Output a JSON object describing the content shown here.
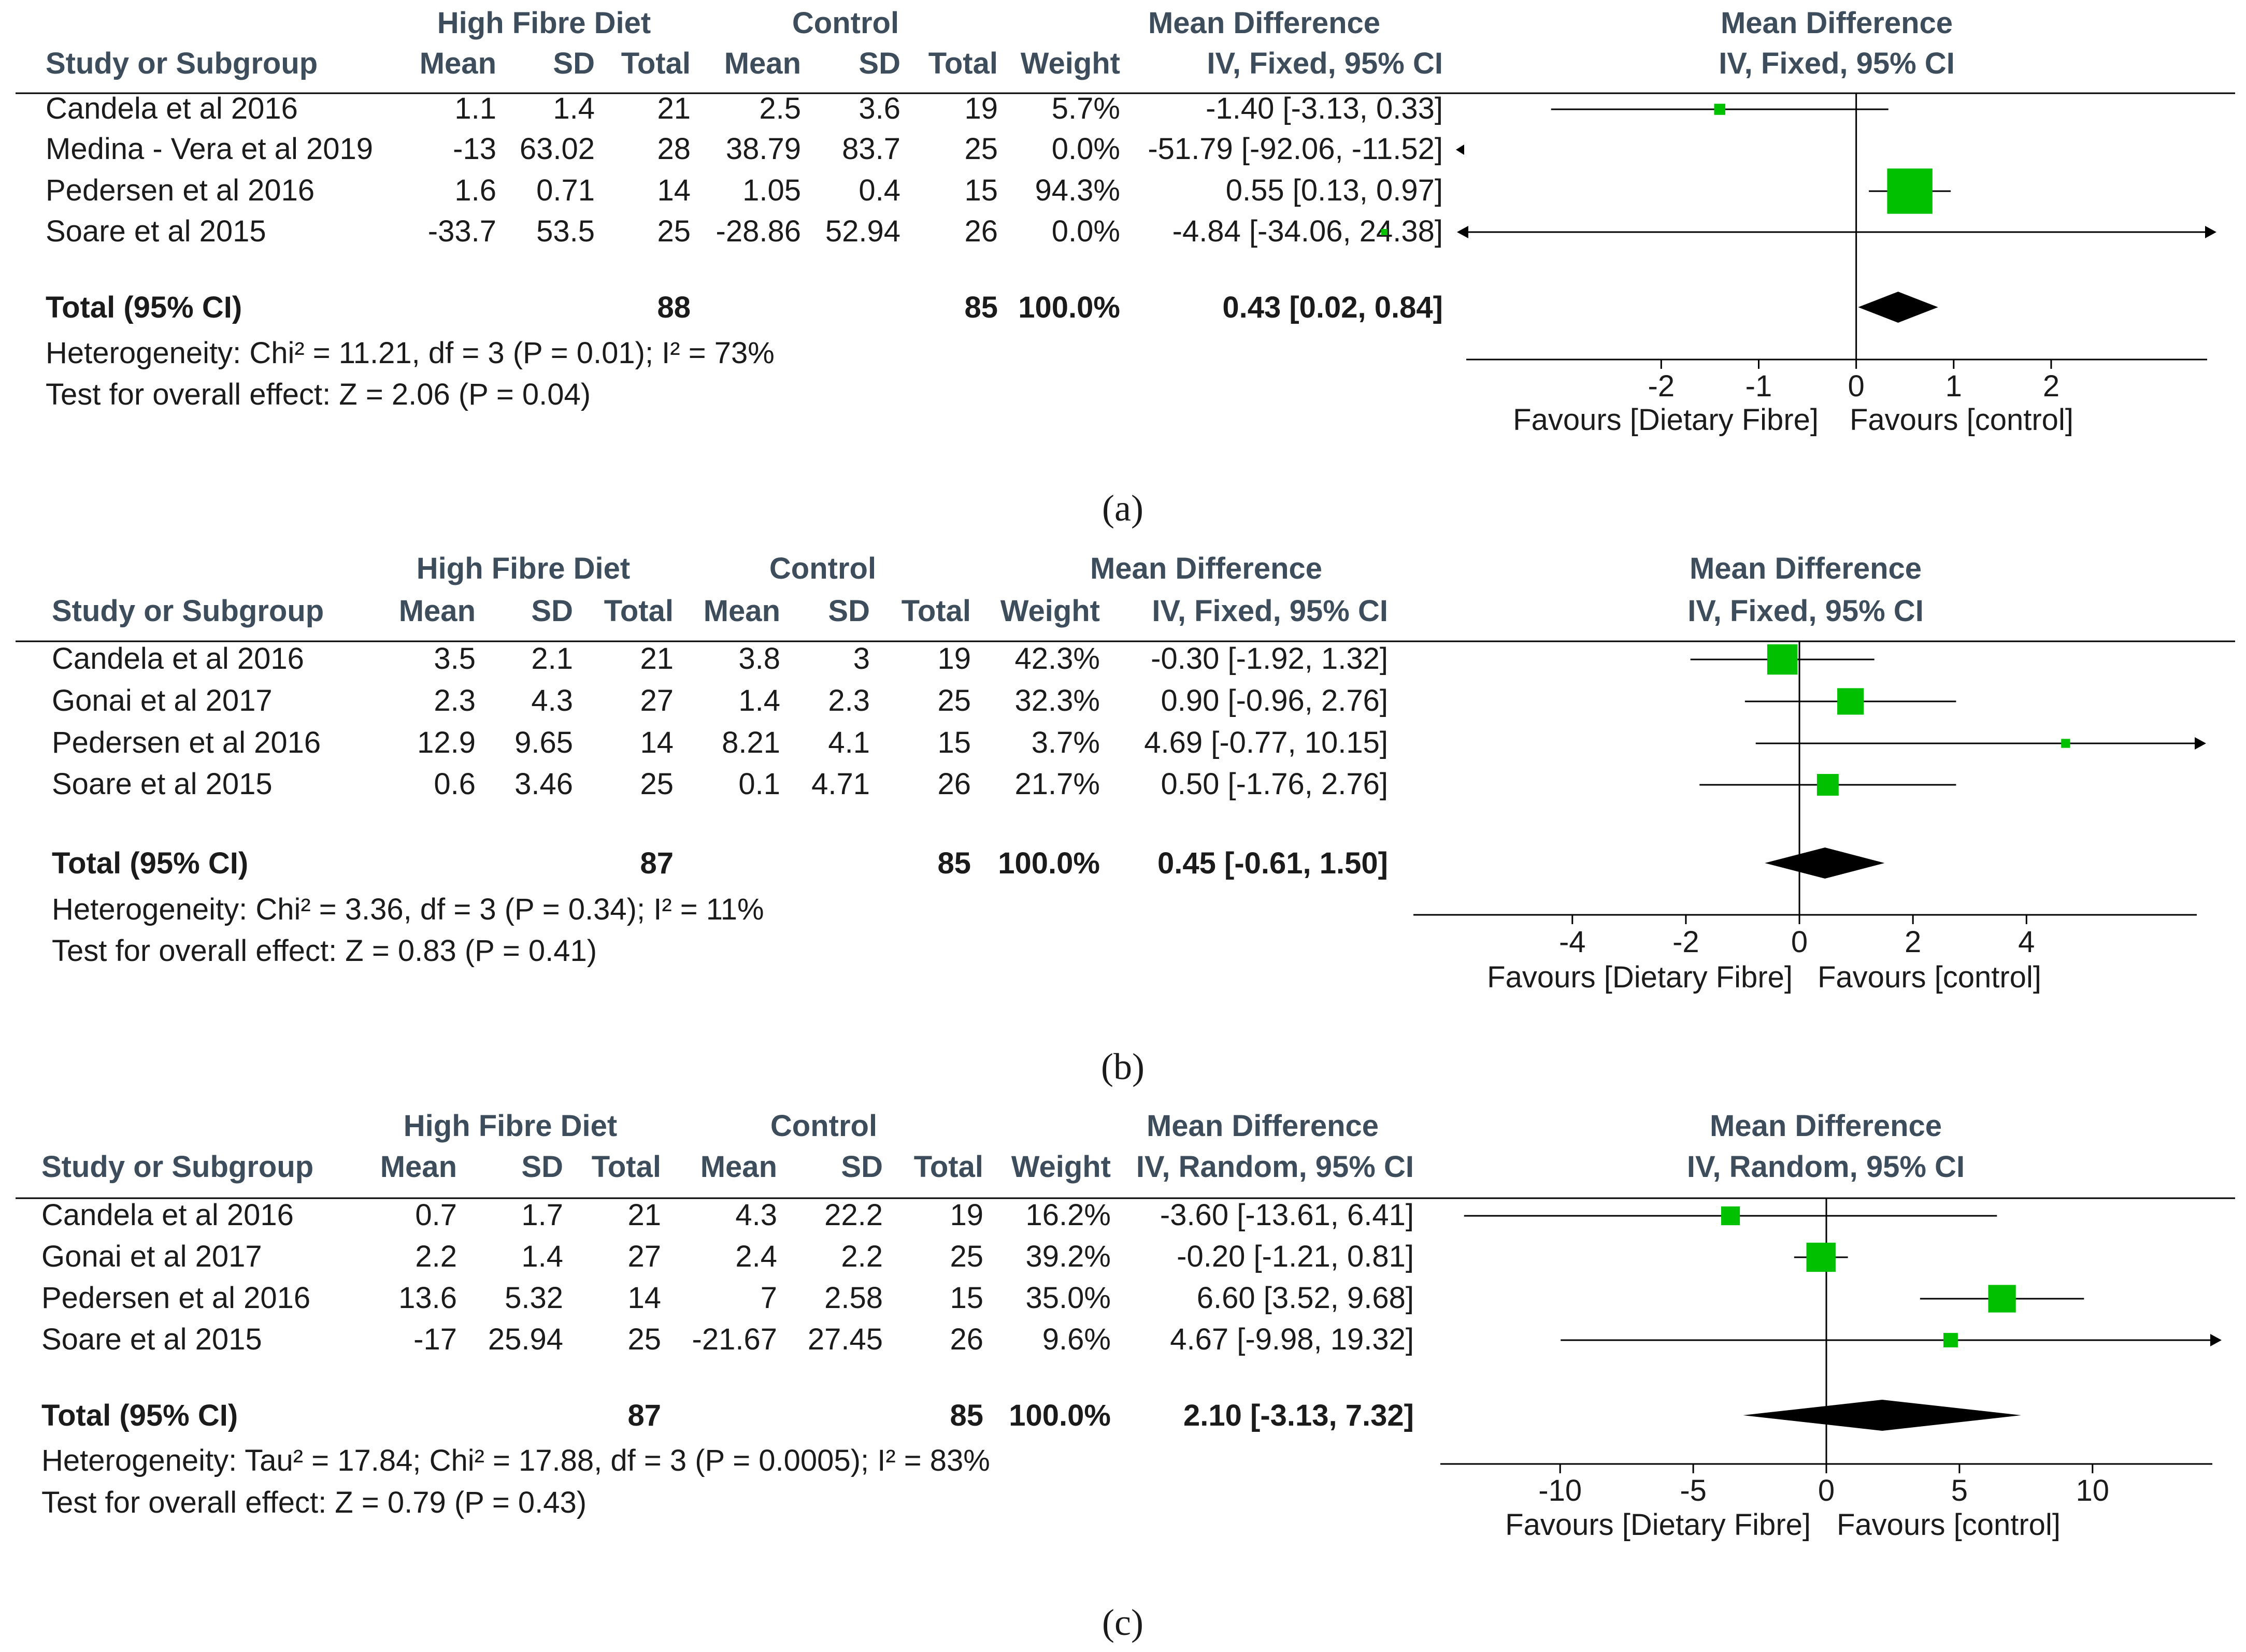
{
  "chart_data": [
    {
      "type": "forest",
      "caption": "(a)",
      "method": "IV, Fixed, 95% CI",
      "headers": {
        "group1": "High Fibre Diet",
        "group2": "Control",
        "md_top": "Mean Difference",
        "md_sub": "IV, Fixed, 95% CI",
        "plot_top": "Mean Difference",
        "plot_sub": "IV, Fixed, 95% CI",
        "study": "Study or Subgroup",
        "mean1": "Mean",
        "sd1": "SD",
        "total1": "Total",
        "mean2": "Mean",
        "sd2": "SD",
        "total2": "Total",
        "weight": "Weight"
      },
      "studies": [
        {
          "name": "Candela et al 2016",
          "mean1": "1.1",
          "sd1": "1.4",
          "n1": "21",
          "mean2": "2.5",
          "sd2": "3.6",
          "n2": "19",
          "weight": "5.7%",
          "ci_text": "-1.40 [-3.13, 0.33]",
          "md": -1.4,
          "lo": -3.13,
          "hi": 0.33,
          "w": 5.7
        },
        {
          "name": "Medina - Vera et al 2019",
          "mean1": "-13",
          "sd1": "63.02",
          "n1": "28",
          "mean2": "38.79",
          "sd2": "83.7",
          "n2": "25",
          "weight": "0.0%",
          "ci_text": "-51.79 [-92.06, -11.52]",
          "md": -51.79,
          "lo": -92.06,
          "hi": -11.52,
          "w": 0.0
        },
        {
          "name": "Pedersen et al 2016",
          "mean1": "1.6",
          "sd1": "0.71",
          "n1": "14",
          "mean2": "1.05",
          "sd2": "0.4",
          "n2": "15",
          "weight": "94.3%",
          "ci_text": "0.55 [0.13, 0.97]",
          "md": 0.55,
          "lo": 0.13,
          "hi": 0.97,
          "w": 94.3
        },
        {
          "name": "Soare et al 2015",
          "mean1": "-33.7",
          "sd1": "53.5",
          "n1": "25",
          "mean2": "-28.86",
          "sd2": "52.94",
          "n2": "26",
          "weight": "0.0%",
          "ci_text": "-4.84 [-34.06, 24.38]",
          "md": -4.84,
          "lo": -34.06,
          "hi": 24.38,
          "w": 0.0
        }
      ],
      "total": {
        "label": "Total (95% CI)",
        "n1": "88",
        "n2": "85",
        "weight": "100.0%",
        "ci_text": "0.43 [0.02, 0.84]",
        "md": 0.43,
        "lo": 0.02,
        "hi": 0.84
      },
      "heterogeneity": "Heterogeneity: Chi² = 11.21, df = 3 (P = 0.01); I² = 73%",
      "overall": "Test for overall effect: Z = 2.06 (P = 0.04)",
      "xlim": [
        -4,
        3.6
      ],
      "ticks": [
        -2,
        -1,
        0,
        1,
        2
      ],
      "tick_labels": [
        "-2",
        "-1",
        "0",
        "1",
        "2"
      ],
      "favours_left": "Favours [Dietary Fibre]",
      "favours_right": "Favours [control]",
      "marker_color": "#00c000"
    },
    {
      "type": "forest",
      "caption": "(b)",
      "method": "IV, Fixed, 95% CI",
      "headers": {
        "group1": "High Fibre Diet",
        "group2": "Control",
        "md_top": "Mean Difference",
        "md_sub": "IV, Fixed, 95% CI",
        "plot_top": "Mean Difference",
        "plot_sub": "IV, Fixed, 95% CI",
        "study": "Study or Subgroup",
        "mean1": "Mean",
        "sd1": "SD",
        "total1": "Total",
        "mean2": "Mean",
        "sd2": "SD",
        "total2": "Total",
        "weight": "Weight"
      },
      "studies": [
        {
          "name": "Candela et al 2016",
          "mean1": "3.5",
          "sd1": "2.1",
          "n1": "21",
          "mean2": "3.8",
          "sd2": "3",
          "n2": "19",
          "weight": "42.3%",
          "ci_text": "-0.30 [-1.92, 1.32]",
          "md": -0.3,
          "lo": -1.92,
          "hi": 1.32,
          "w": 42.3
        },
        {
          "name": "Gonai et al 2017",
          "mean1": "2.3",
          "sd1": "4.3",
          "n1": "27",
          "mean2": "1.4",
          "sd2": "2.3",
          "n2": "25",
          "weight": "32.3%",
          "ci_text": "0.90 [-0.96, 2.76]",
          "md": 0.9,
          "lo": -0.96,
          "hi": 2.76,
          "w": 32.3
        },
        {
          "name": "Pedersen et al 2016",
          "mean1": "12.9",
          "sd1": "9.65",
          "n1": "14",
          "mean2": "8.21",
          "sd2": "4.1",
          "n2": "15",
          "weight": "3.7%",
          "ci_text": "4.69 [-0.77, 10.15]",
          "md": 4.69,
          "lo": -0.77,
          "hi": 10.15,
          "w": 3.7
        },
        {
          "name": "Soare et al 2015",
          "mean1": "0.6",
          "sd1": "3.46",
          "n1": "25",
          "mean2": "0.1",
          "sd2": "4.71",
          "n2": "26",
          "weight": "21.7%",
          "ci_text": "0.50 [-1.76, 2.76]",
          "md": 0.5,
          "lo": -1.76,
          "hi": 2.76,
          "w": 21.7
        }
      ],
      "total": {
        "label": "Total (95% CI)",
        "n1": "87",
        "n2": "85",
        "weight": "100.0%",
        "ci_text": "0.45 [-0.61, 1.50]",
        "md": 0.45,
        "lo": -0.61,
        "hi": 1.5
      },
      "heterogeneity": "Heterogeneity: Chi² = 3.36, df = 3 (P = 0.34); I² = 11%",
      "overall": "Test for overall effect: Z = 0.83 (P = 0.41)",
      "xlim": [
        -6.8,
        7.0
      ],
      "ticks": [
        -4,
        -2,
        0,
        2,
        4
      ],
      "tick_labels": [
        "-4",
        "-2",
        "0",
        "2",
        "4"
      ],
      "favours_left": "Favours [Dietary Fibre]",
      "favours_right": "Favours [control]",
      "marker_color": "#00c000"
    },
    {
      "type": "forest",
      "caption": "(c)",
      "method": "IV, Random, 95% CI",
      "headers": {
        "group1": "High Fibre Diet",
        "group2": "Control",
        "md_top": "Mean Difference",
        "md_sub": "IV, Random, 95% CI",
        "plot_top": "Mean Difference",
        "plot_sub": "IV, Random, 95% CI",
        "study": "Study or Subgroup",
        "mean1": "Mean",
        "sd1": "SD",
        "total1": "Total",
        "mean2": "Mean",
        "sd2": "SD",
        "total2": "Total",
        "weight": "Weight"
      },
      "studies": [
        {
          "name": "Candela et al 2016",
          "mean1": "0.7",
          "sd1": "1.7",
          "n1": "21",
          "mean2": "4.3",
          "sd2": "22.2",
          "n2": "19",
          "weight": "16.2%",
          "ci_text": "-3.60 [-13.61, 6.41]",
          "md": -3.6,
          "lo": -13.61,
          "hi": 6.41,
          "w": 16.2
        },
        {
          "name": "Gonai et al 2017",
          "mean1": "2.2",
          "sd1": "1.4",
          "n1": "27",
          "mean2": "2.4",
          "sd2": "2.2",
          "n2": "25",
          "weight": "39.2%",
          "ci_text": "-0.20 [-1.21, 0.81]",
          "md": -0.2,
          "lo": -1.21,
          "hi": 0.81,
          "w": 39.2
        },
        {
          "name": "Pedersen et al 2016",
          "mean1": "13.6",
          "sd1": "5.32",
          "n1": "14",
          "mean2": "7",
          "sd2": "2.58",
          "n2": "15",
          "weight": "35.0%",
          "ci_text": "6.60 [3.52, 9.68]",
          "md": 6.6,
          "lo": 3.52,
          "hi": 9.68,
          "w": 35.0
        },
        {
          "name": "Soare et al 2015",
          "mean1": "-17",
          "sd1": "25.94",
          "n1": "25",
          "mean2": "-21.67",
          "sd2": "27.45",
          "n2": "26",
          "weight": "9.6%",
          "ci_text": "4.67 [-9.98, 19.32]",
          "md": 4.67,
          "lo": -9.98,
          "hi": 19.32,
          "w": 9.6
        }
      ],
      "total": {
        "label": "Total (95% CI)",
        "n1": "87",
        "n2": "85",
        "weight": "100.0%",
        "ci_text": "2.10 [-3.13, 7.32]",
        "md": 2.1,
        "lo": -3.13,
        "hi": 7.32
      },
      "heterogeneity": "Heterogeneity: Tau² = 17.84; Chi² = 17.88, df = 3 (P = 0.0005); I² = 83%",
      "overall": "Test for overall effect: Z = 0.79 (P = 0.43)",
      "xlim": [
        -14.5,
        14.5
      ],
      "ticks": [
        -10,
        -5,
        0,
        5,
        10
      ],
      "tick_labels": [
        "-10",
        "-5",
        "0",
        "5",
        "10"
      ],
      "favours_left": "Favours [Dietary Fibre]",
      "favours_right": "Favours [control]",
      "marker_color": "#00c000"
    }
  ]
}
